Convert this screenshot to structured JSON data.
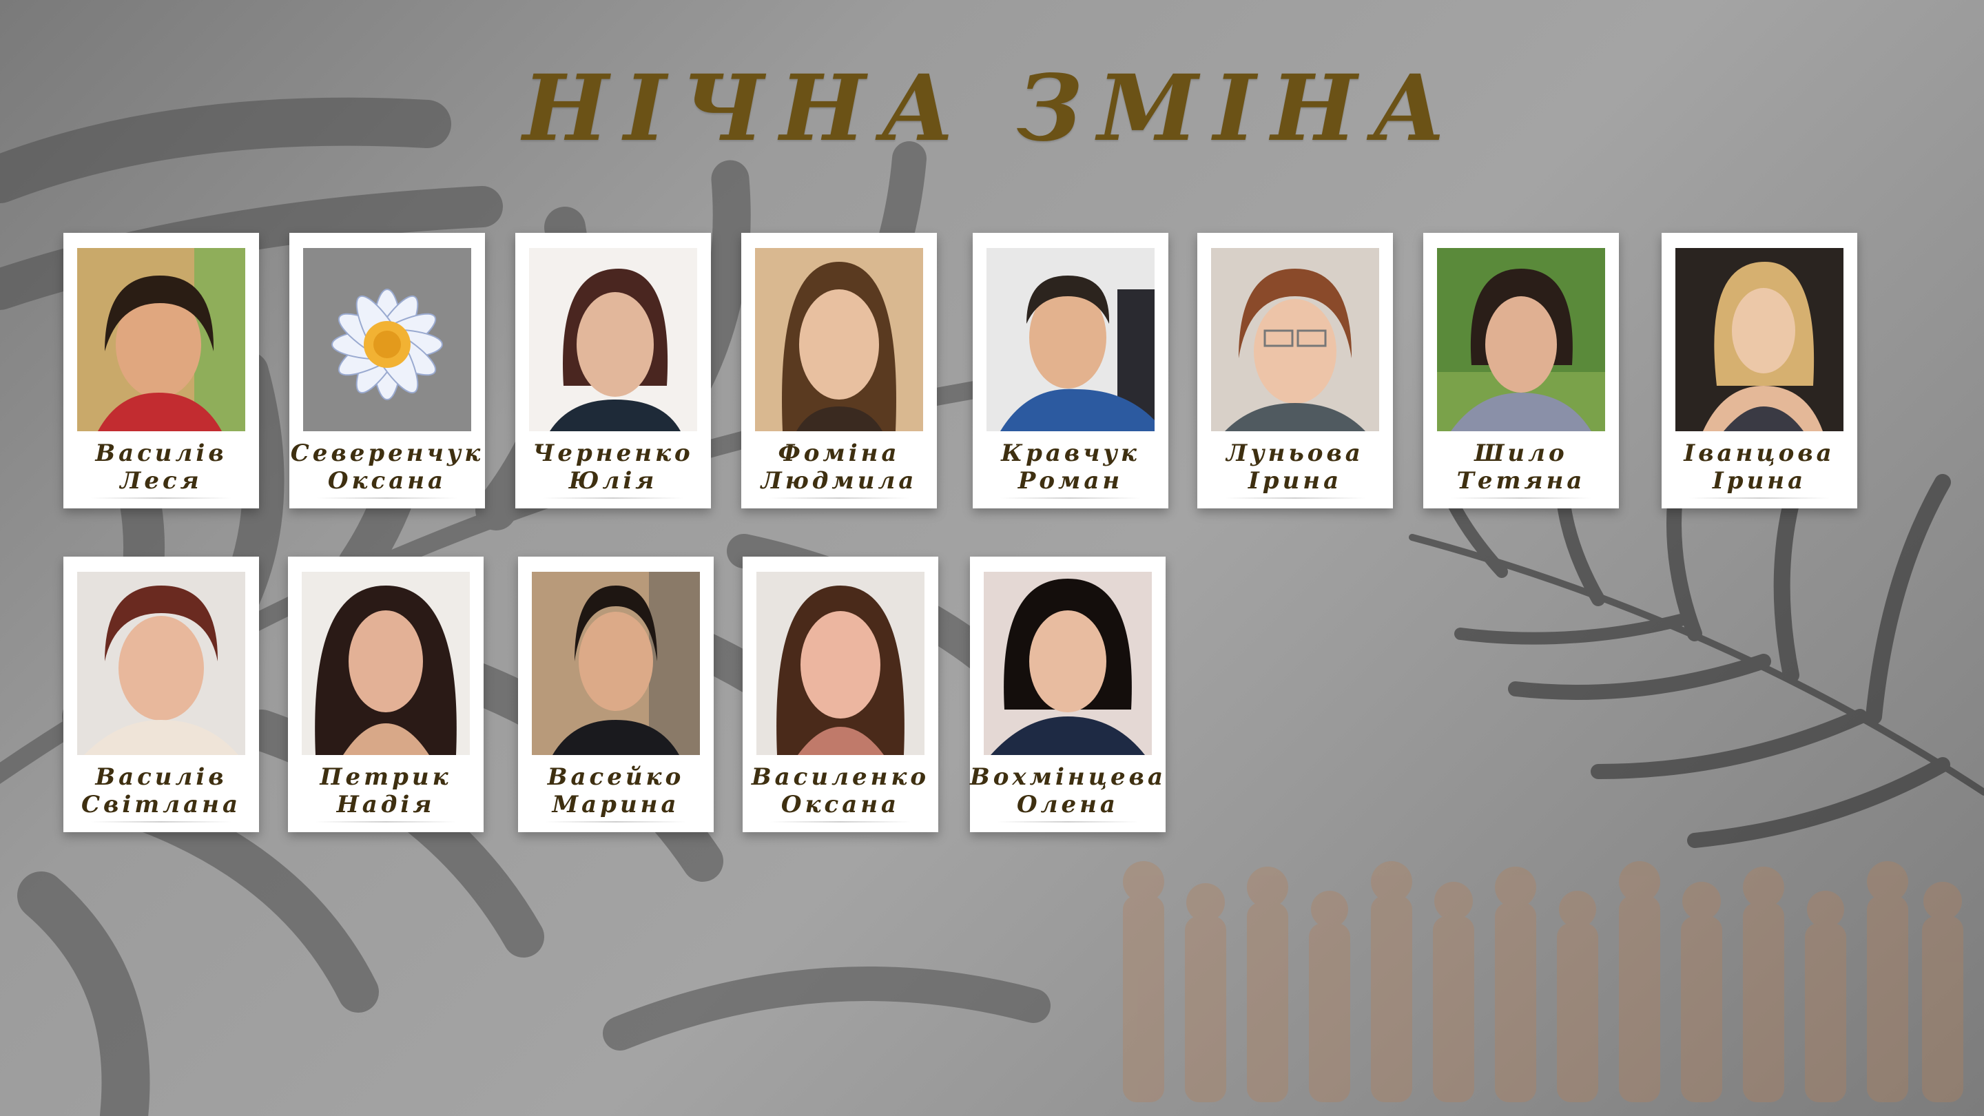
{
  "title": "НІЧНА ЗМІНА",
  "accent_color": "#6b5216",
  "people": [
    {
      "surname": "Василів",
      "first_name": "Леся",
      "photo": "portrait-woman-short-dark-hair"
    },
    {
      "surname": "Северенчук",
      "first_name": "Оксана",
      "photo": "daisy-flower-image"
    },
    {
      "surname": "Черненко",
      "first_name": "Юлія",
      "photo": "portrait-woman-auburn-hair"
    },
    {
      "surname": "Фоміна",
      "first_name": "Людмила",
      "photo": "portrait-woman-long-brown-hair"
    },
    {
      "surname": "Кравчук",
      "first_name": "Роман",
      "photo": "portrait-man-short-hair"
    },
    {
      "surname": "Луньова",
      "first_name": "Ірина",
      "photo": "portrait-woman-glasses-headset"
    },
    {
      "surname": "Шило",
      "first_name": "Тетяна",
      "photo": "portrait-woman-outdoors"
    },
    {
      "surname": "Іванцова",
      "first_name": "Ірина",
      "photo": "portrait-woman-blonde"
    },
    {
      "surname": "Василів",
      "first_name": "Світлана",
      "photo": "portrait-woman-short-auburn-hair"
    },
    {
      "surname": "Петрик",
      "first_name": "Надія",
      "photo": "portrait-woman-long-dark-hair"
    },
    {
      "surname": "Васейко",
      "first_name": "Марина",
      "photo": "portrait-woman-dark-hair-pulled-back"
    },
    {
      "surname": "Василенко",
      "first_name": "Оксана",
      "photo": "portrait-woman-brown-hair"
    },
    {
      "surname": "Вохмінцева",
      "first_name": "Олена",
      "photo": "portrait-woman-dark-bob"
    }
  ]
}
